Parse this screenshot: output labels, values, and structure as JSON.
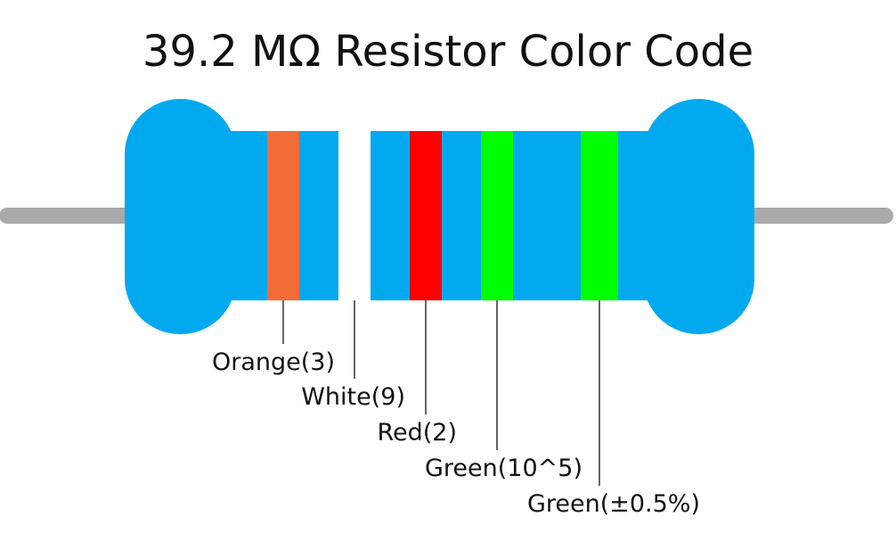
{
  "title": "39.2 MΩ Resistor Color Code",
  "colors": {
    "body": "#03A9EF",
    "lead": "#A9A9A9",
    "leader_line": "#333333"
  },
  "bands": [
    {
      "color_name": "Orange",
      "hex": "#F46C35",
      "label": "Orange(3)"
    },
    {
      "color_name": "White",
      "hex": "#FFFFFF",
      "label": "White(9)"
    },
    {
      "color_name": "Red",
      "hex": "#FF0000",
      "label": "Red(2)"
    },
    {
      "color_name": "Green",
      "hex": "#00FF00",
      "label": "Green(10^5)"
    },
    {
      "color_name": "Green",
      "hex": "#00FF00",
      "label": "Green(±0.5%)"
    }
  ]
}
